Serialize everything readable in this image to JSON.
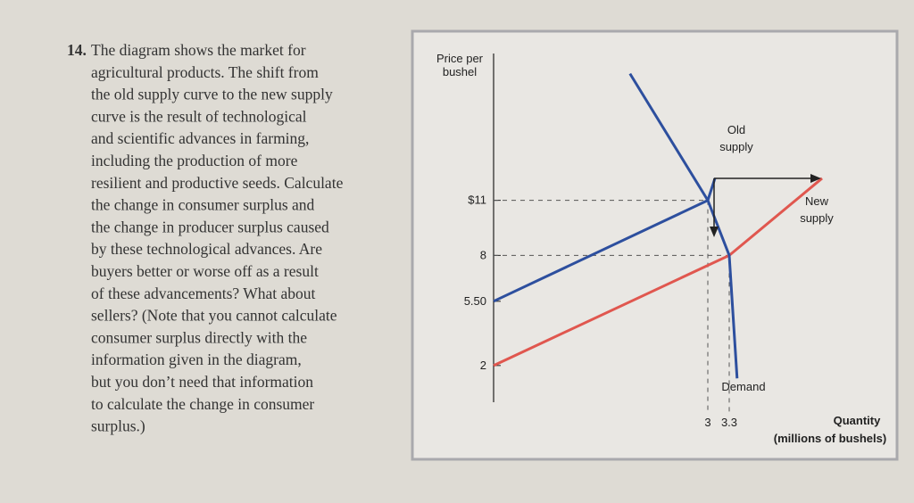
{
  "question": {
    "number": "14.",
    "lines": [
      "The diagram shows the market for",
      "agricultural products. The shift from",
      "the old supply curve to the new supply",
      "curve is the result of technological",
      "and scientific advances in farming,",
      "including the production of more",
      "resilient and productive seeds. Calculate",
      "the change in consumer surplus and",
      "the change in producer surplus caused",
      "by these technological advances. Are",
      "buyers better or worse off as a result",
      "of these advancements? What about",
      "sellers? (Note that you cannot calculate",
      "consumer surplus directly with the",
      "information given in the diagram,",
      "but you don’t need that information",
      "to calculate the change in consumer",
      "surplus.)"
    ]
  },
  "chart_data": {
    "type": "line",
    "y_label": [
      "Price per",
      "bushel"
    ],
    "x_label": [
      "Quantity",
      "(millions of bushels)"
    ],
    "xlim": [
      0,
      5.4
    ],
    "ylim": [
      0,
      19
    ],
    "xticks": [
      3,
      3.3
    ],
    "yticks": [
      {
        "value": 2,
        "label": "2"
      },
      {
        "value": 5.5,
        "label": "5.50"
      },
      {
        "value": 8,
        "label": "8"
      },
      {
        "value": 11,
        "label": "$11"
      }
    ],
    "series": [
      {
        "name": "Old supply",
        "color": "#2d4f9e",
        "x": [
          0,
          3,
          3.1
        ],
        "values": [
          5.5,
          11,
          12.2
        ]
      },
      {
        "name": "New supply",
        "color": "#e0574f",
        "x": [
          0,
          3.3,
          4.6
        ],
        "values": [
          2,
          8,
          12.2
        ]
      },
      {
        "name": "Demand",
        "color": "#2d4f9e",
        "x": [
          1.91,
          3,
          3.3,
          3.41
        ],
        "values": [
          17.9,
          11,
          8,
          1.3
        ]
      }
    ]
  }
}
